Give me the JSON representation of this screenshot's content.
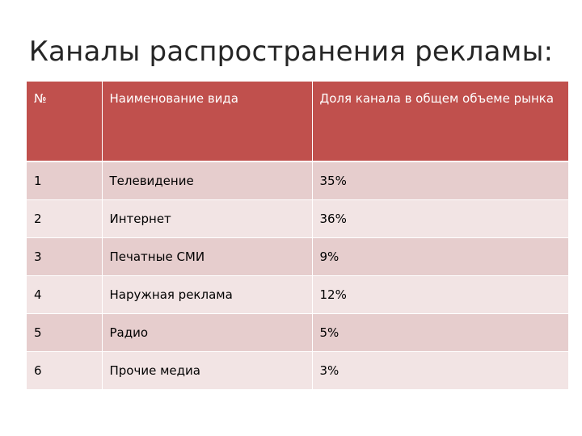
{
  "title": "Каналы распространения рекламы:",
  "table": {
    "headers": [
      "№",
      "Наименование вида",
      "Доля канала в общем  объеме рынка"
    ],
    "rows": [
      [
        "1",
        "Телевидение",
        "35%"
      ],
      [
        "2",
        "Интернет",
        "36%"
      ],
      [
        "3",
        "Печатные СМИ",
        "9%"
      ],
      [
        "4",
        "Наружная реклама",
        "12%"
      ],
      [
        "5",
        "Радио",
        "5%"
      ],
      [
        "6",
        "Прочие медиа",
        "3%"
      ]
    ]
  },
  "colors": {
    "header_background": "#c0504d",
    "header_text": "#ffffff",
    "row_band_dark": "#e6cdcd",
    "row_band_light": "#f2e4e4"
  }
}
